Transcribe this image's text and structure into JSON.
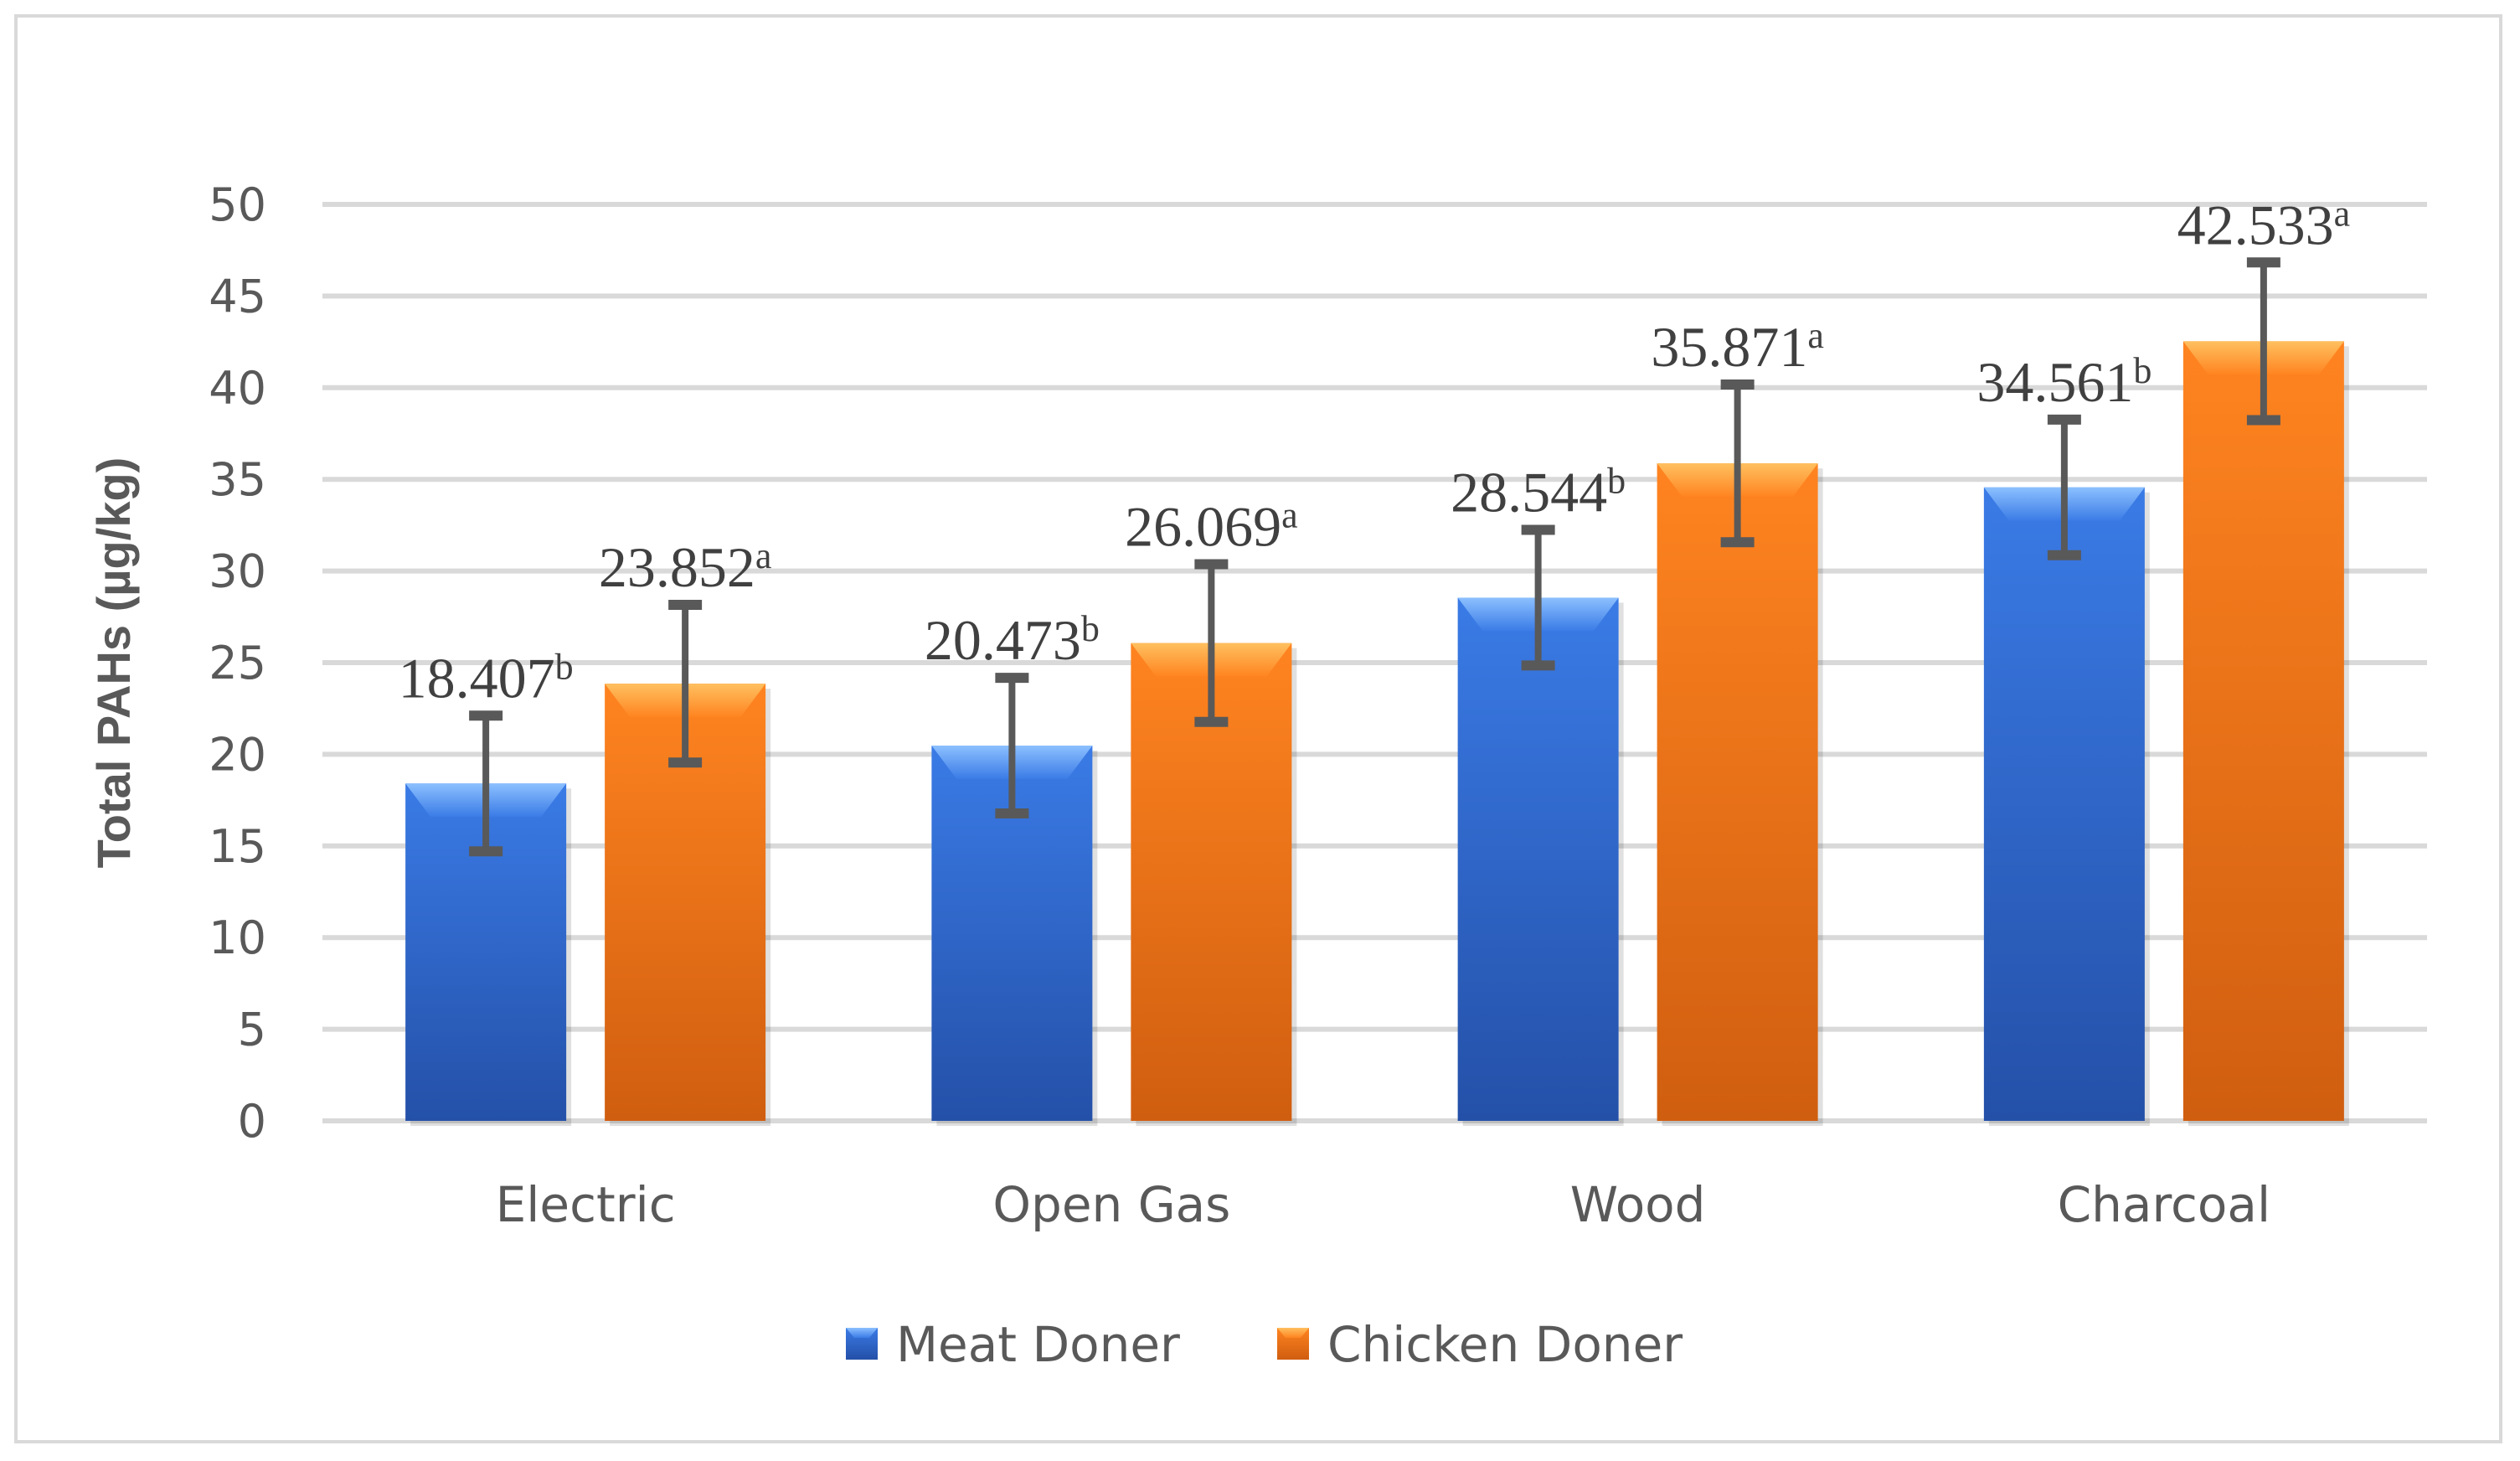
{
  "chart_data": {
    "type": "bar",
    "title": "",
    "xlabel": "",
    "ylabel": "Total PAHs (µg/kg)",
    "ylim": [
      0,
      50
    ],
    "yticks": [
      0,
      5,
      10,
      15,
      20,
      25,
      30,
      35,
      40,
      45,
      50
    ],
    "grid": true,
    "legend_position": "bottom",
    "categories": [
      "Electric",
      "Open Gas",
      "Wood",
      "Charcoal"
    ],
    "series": [
      {
        "name": "Meat Doner",
        "color": "#2f6fd6",
        "values": [
          18.407,
          20.473,
          28.544,
          34.561
        ],
        "labels": [
          "18.407",
          "20.473",
          "28.544",
          "34.561"
        ],
        "superscript": [
          "b",
          "b",
          "b",
          "b"
        ],
        "error": [
          3.7,
          3.7,
          3.7,
          3.7
        ]
      },
      {
        "name": "Chicken Doner",
        "color": "#f57a14",
        "values": [
          23.852,
          26.069,
          35.871,
          42.533
        ],
        "labels": [
          "23.852",
          "26.069",
          "35.871",
          "42.533"
        ],
        "superscript": [
          "a",
          "a",
          "a",
          "a"
        ],
        "error": [
          4.3,
          4.3,
          4.3,
          4.3
        ]
      }
    ]
  }
}
